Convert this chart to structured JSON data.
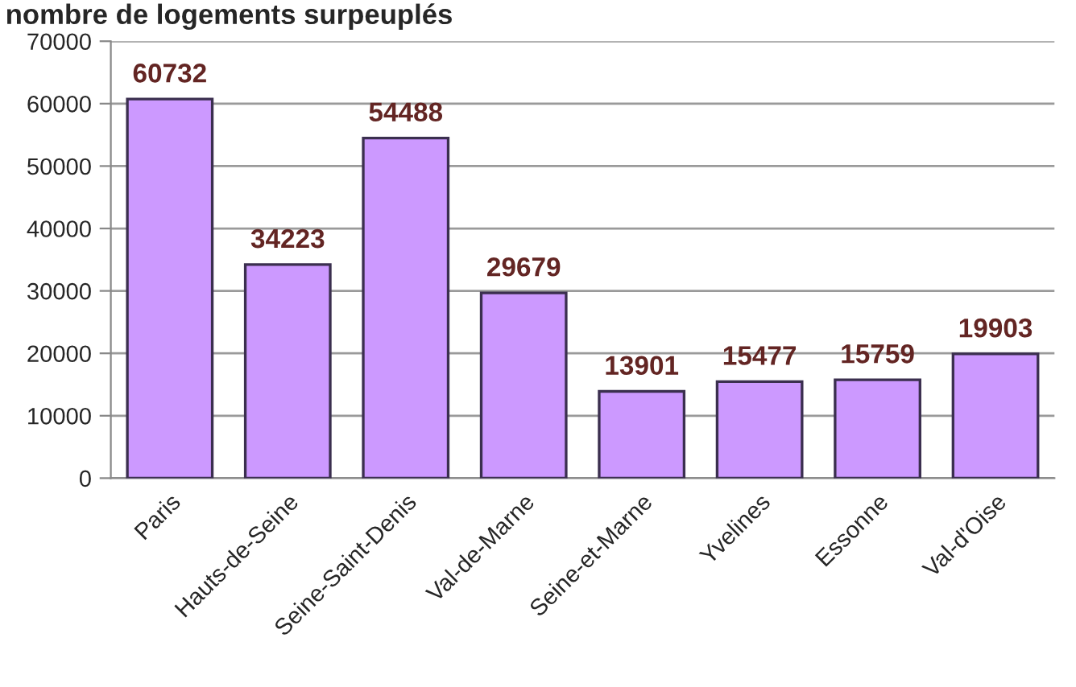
{
  "chart_data": {
    "type": "bar",
    "title": "nombre de logements surpeuplés",
    "categories": [
      "Paris",
      "Hauts-de-Seine",
      "Seine-Saint-Denis",
      "Val-de-Marne",
      "Seine-et-Marne",
      "Yvelines",
      "Essonne",
      "Val-d'Oise"
    ],
    "values": [
      60732,
      34223,
      54488,
      29679,
      13901,
      15477,
      15759,
      19903
    ],
    "color": "#cc99ff",
    "ylim": [
      0,
      70000
    ],
    "yticks": [
      0,
      10000,
      20000,
      30000,
      40000,
      50000,
      60000,
      70000
    ],
    "grid": "y",
    "data_labels": true
  }
}
